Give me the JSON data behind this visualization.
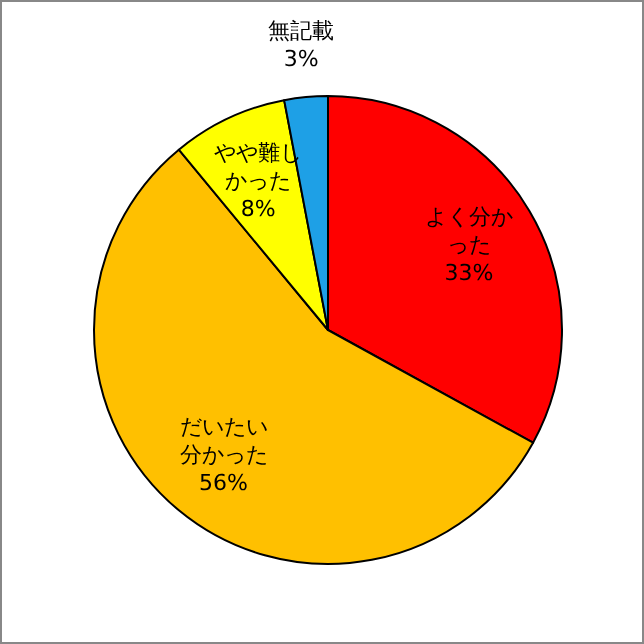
{
  "chart_data": {
    "type": "pie",
    "categories": [
      "よく分かった",
      "だいたい分かった",
      "やや難しかった",
      "無記載"
    ],
    "values": [
      33,
      56,
      8,
      3
    ],
    "value_labels": [
      "33%",
      "56%",
      "8%",
      "3%"
    ],
    "colors": [
      "#ff0000",
      "#ffc000",
      "#ffff00",
      "#1ea0e6"
    ]
  }
}
